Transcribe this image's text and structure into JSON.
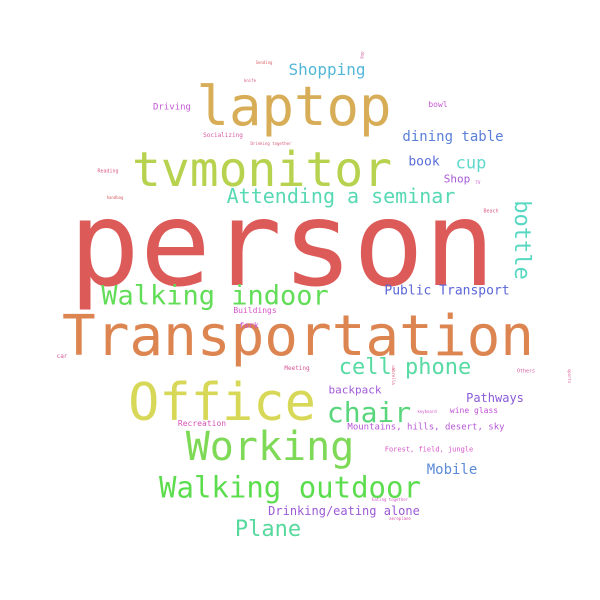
{
  "words": [
    {
      "text": "person",
      "color": "#dc5a57"
    },
    {
      "text": "Transportation",
      "color": "#dd8551"
    },
    {
      "text": "laptop",
      "color": "#d7ad57"
    },
    {
      "text": "tvmonitor",
      "color": "#b7d24e"
    },
    {
      "text": "Office",
      "color": "#d7d858"
    },
    {
      "text": "Working",
      "color": "#7ed957"
    },
    {
      "text": "Walking outdoor",
      "color": "#5cdd4e"
    },
    {
      "text": "Walking indoor",
      "color": "#62dd58"
    },
    {
      "text": "chair",
      "color": "#59d67c"
    },
    {
      "text": "cell phone",
      "color": "#57dba3"
    },
    {
      "text": "Plane",
      "color": "#57d99e"
    },
    {
      "text": "Attending a seminar",
      "color": "#57d9b3"
    },
    {
      "text": "bottle",
      "color": "#58d8c2"
    },
    {
      "text": "cup",
      "color": "#5ed9cb"
    },
    {
      "text": "Shopping",
      "color": "#53b7d8"
    },
    {
      "text": "dining table",
      "color": "#5a7fd8"
    },
    {
      "text": "book",
      "color": "#5a6ed9"
    },
    {
      "text": "Public Transport",
      "color": "#5b66d7"
    },
    {
      "text": "Mobile",
      "color": "#5b8ad8"
    },
    {
      "text": "Pathways",
      "color": "#8a5bd8"
    },
    {
      "text": "Drinking/eating alone",
      "color": "#9c5ad7"
    },
    {
      "text": "backpack",
      "color": "#a25bd9"
    },
    {
      "text": "Shop",
      "color": "#a65bd8"
    },
    {
      "text": "Driving",
      "color": "#c457d6"
    },
    {
      "text": "bowl",
      "color": "#c95ad4"
    },
    {
      "text": "fork",
      "color": "#c852d3"
    },
    {
      "text": "Buildings",
      "color": "#d754cb"
    },
    {
      "text": "Mountains, hills, desert, sky",
      "color": "#b756d7"
    },
    {
      "text": "wine glass",
      "color": "#c151d6"
    },
    {
      "text": "Recreation",
      "color": "#d753b5"
    },
    {
      "text": "Forest, field, jungle",
      "color": "#d555c7"
    },
    {
      "text": "Socializing",
      "color": "#d85aa6"
    },
    {
      "text": "Meeting",
      "color": "#d75493"
    },
    {
      "text": "car",
      "color": "#d3579a"
    },
    {
      "text": "Others",
      "color": "#d45a9f"
    },
    {
      "text": "Beach",
      "color": "#d85c8b"
    },
    {
      "text": "Reading",
      "color": "#d85a87"
    },
    {
      "text": "Drinking together",
      "color": "#d65a77"
    },
    {
      "text": "knife",
      "color": "#d6567a"
    },
    {
      "text": "Sending",
      "color": "#d85f64"
    },
    {
      "text": "handbag",
      "color": "#d86366"
    },
    {
      "text": "Eating together",
      "color": "#d457c0"
    },
    {
      "text": "aeroplane",
      "color": "#d552a8"
    },
    {
      "text": "umbrella",
      "color": "#d8577b"
    },
    {
      "text": "TV",
      "color": "#c958d6"
    },
    {
      "text": "dog",
      "color": "#d0589c"
    },
    {
      "text": "sports",
      "color": "#d8599a"
    },
    {
      "text": "keyboard",
      "color": "#d35ccf"
    }
  ]
}
